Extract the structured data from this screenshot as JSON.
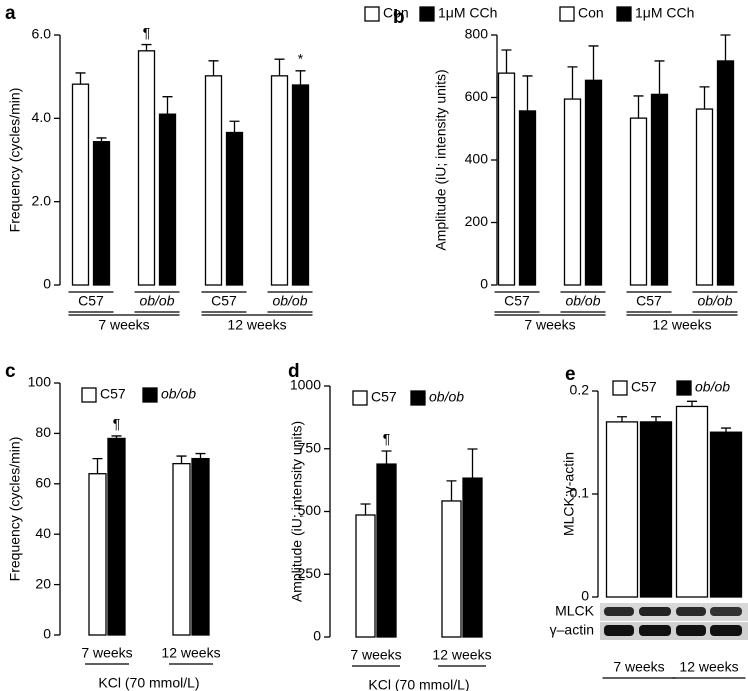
{
  "chart_data": [
    {
      "panel": "a",
      "type": "bar",
      "ylabel": "Frequency (cycles/min)",
      "categories": [
        "C57",
        "ob/ob",
        "C57",
        "ob/ob"
      ],
      "groups": [
        "7 weeks",
        "12 weeks"
      ],
      "series": [
        {
          "name": "Con",
          "color": "#ffffff",
          "values": [
            4.82,
            5.62,
            5.02,
            5.02
          ],
          "errors": [
            0.27,
            0.15,
            0.36,
            0.4
          ]
        },
        {
          "name": "1μM CCh",
          "color": "#000000",
          "values": [
            3.44,
            4.1,
            3.66,
            4.8
          ],
          "errors": [
            0.09,
            0.42,
            0.27,
            0.34
          ]
        }
      ],
      "ylim": [
        0,
        6
      ],
      "yticks": [
        0,
        {
          "value": 2,
          "label": "2.0"
        },
        {
          "value": 4,
          "label": "4.0"
        },
        {
          "value": 6,
          "label": "6.0"
        }
      ],
      "annotations": [
        {
          "text": "¶",
          "series": 0,
          "index": 1
        },
        {
          "text": "*",
          "series": 1,
          "index": 3
        }
      ]
    },
    {
      "panel": "b",
      "type": "bar",
      "ylabel": "Amplitude (iU; intensity units)",
      "categories": [
        "C57",
        "ob/ob",
        "C57",
        "ob/ob"
      ],
      "groups": [
        "7 weeks",
        "12 weeks"
      ],
      "series": [
        {
          "name": "Con",
          "color": "#ffffff",
          "values": [
            678,
            595,
            534,
            563
          ],
          "errors": [
            74,
            103,
            71,
            71
          ]
        },
        {
          "name": "1μM CCh",
          "color": "#000000",
          "values": [
            557,
            655,
            610,
            717
          ],
          "errors": [
            112,
            110,
            107,
            83
          ]
        }
      ],
      "ylim": [
        0,
        800
      ],
      "yticks": [
        0,
        200,
        400,
        600,
        800
      ]
    },
    {
      "panel": "c",
      "type": "bar",
      "ylabel": "Frequency (cycles/min)",
      "xlabel": "KCl (70 mmol/L)",
      "categories": [
        "7 weeks",
        "12 weeks"
      ],
      "series": [
        {
          "name": "C57",
          "color": "#ffffff",
          "values": [
            64,
            68
          ],
          "errors": [
            6,
            3
          ]
        },
        {
          "name": "ob/ob",
          "color": "#000000",
          "values": [
            78,
            70
          ],
          "errors": [
            1,
            2
          ]
        }
      ],
      "ylim": [
        0,
        100
      ],
      "yticks": [
        0,
        20,
        40,
        60,
        80,
        100
      ],
      "annotations": [
        {
          "text": "¶",
          "series": 1,
          "index": 0
        }
      ]
    },
    {
      "panel": "d",
      "type": "bar",
      "ylabel": "Amplitude (iU; intensity units)",
      "xlabel": "KCl (70 mmol/L)",
      "categories": [
        "7 weeks",
        "12 weeks"
      ],
      "series": [
        {
          "name": "C57",
          "color": "#ffffff",
          "values": [
            486,
            542
          ],
          "errors": [
            44,
            80
          ]
        },
        {
          "name": "ob/ob",
          "color": "#000000",
          "values": [
            689,
            633
          ],
          "errors": [
            52,
            116
          ]
        }
      ],
      "ylim": [
        0,
        1000
      ],
      "yticks": [
        0,
        250,
        500,
        750,
        1000
      ],
      "annotations": [
        {
          "text": "¶",
          "series": 1,
          "index": 0
        }
      ]
    },
    {
      "panel": "e",
      "type": "bar",
      "ylabel": "MLCK:γ-actin",
      "categories": [
        "7 weeks",
        "12 weeks"
      ],
      "series": [
        {
          "name": "C57",
          "color": "#ffffff",
          "values": [
            0.17,
            0.185
          ],
          "errors": [
            0.005,
            0.005
          ]
        },
        {
          "name": "ob/ob",
          "color": "#000000",
          "values": [
            0.17,
            0.16
          ],
          "errors": [
            0.005,
            0.004
          ]
        }
      ],
      "ylim": [
        0,
        0.2
      ],
      "yticks": [
        0,
        0.1,
        0.2
      ],
      "blot_labels": [
        "MLCK",
        "γ–actin"
      ]
    }
  ]
}
